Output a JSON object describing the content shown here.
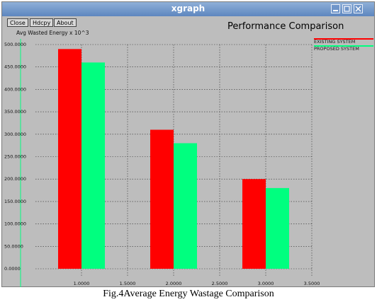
{
  "window": {
    "title": "xgraph",
    "menu": {
      "close": "Close",
      "hdcopy": "Hdcpy",
      "about": "About"
    }
  },
  "caption": "Fig.4Average Energy Wastage Comparison",
  "colors": {
    "existing": "#ff0000",
    "proposed": "#00ff7f",
    "window_bg": "#bdbdbd",
    "titlebar": "#5d86bf"
  },
  "chart_data": {
    "type": "bar",
    "title": "Performance Comparison",
    "ylabel": "Avg Wasted Energy x 10^3",
    "xlabel": "",
    "xlim": [
      0.5,
      3.5
    ],
    "ylim": [
      0,
      500
    ],
    "x_ticks": [
      "1.0000",
      "1.5000",
      "2.0000",
      "2.5000",
      "3.0000",
      "3.5000"
    ],
    "y_ticks": [
      "0.0000",
      "50.0000",
      "100.0000",
      "150.0000",
      "200.0000",
      "250.0000",
      "300.0000",
      "350.0000",
      "400.0000",
      "450.0000",
      "500.0000"
    ],
    "x": [
      1.0,
      2.0,
      3.0
    ],
    "series": [
      {
        "name": "EXISTING SYSTEM",
        "values": [
          490,
          310,
          200
        ]
      },
      {
        "name": "PROPOSED SYSTEM",
        "values": [
          460,
          280,
          180
        ]
      }
    ],
    "grid": true,
    "legend": "top-right"
  }
}
